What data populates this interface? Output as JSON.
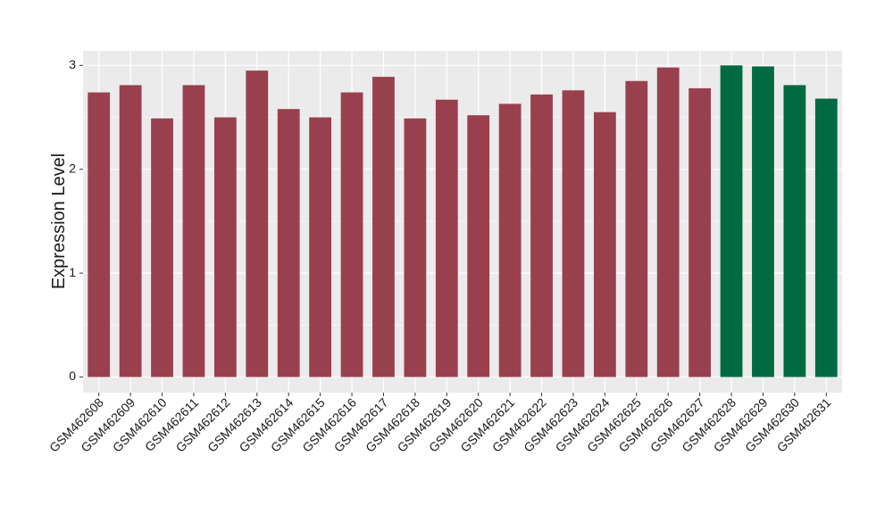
{
  "chart_data": {
    "type": "bar",
    "y_label": "Expression Level",
    "categories": [
      "GSM462608",
      "GSM462609",
      "GSM462610",
      "GSM462611",
      "GSM462612",
      "GSM462613",
      "GSM462614",
      "GSM462615",
      "GSM462616",
      "GSM462617",
      "GSM462618",
      "GSM462619",
      "GSM462620",
      "GSM462621",
      "GSM462622",
      "GSM462623",
      "GSM462624",
      "GSM462625",
      "GSM462626",
      "GSM462627",
      "GSM462628",
      "GSM462629",
      "GSM462630",
      "GSM462631"
    ],
    "values": [
      2.74,
      2.81,
      2.49,
      2.81,
      2.5,
      2.95,
      2.58,
      2.5,
      2.74,
      2.89,
      2.49,
      2.67,
      2.52,
      2.63,
      2.72,
      2.76,
      2.55,
      2.85,
      2.98,
      2.78,
      3.0,
      2.99,
      2.81,
      2.68
    ],
    "colors": [
      "#99404f",
      "#99404f",
      "#99404f",
      "#99404f",
      "#99404f",
      "#99404f",
      "#99404f",
      "#99404f",
      "#99404f",
      "#99404f",
      "#99404f",
      "#99404f",
      "#99404f",
      "#99404f",
      "#99404f",
      "#99404f",
      "#99404f",
      "#99404f",
      "#99404f",
      "#99404f",
      "#006a42",
      "#006a42",
      "#006a42",
      "#006a42"
    ],
    "ylim": [
      -0.15,
      3.14
    ],
    "yticks": [
      0,
      1,
      2,
      3
    ],
    "grid": true
  }
}
